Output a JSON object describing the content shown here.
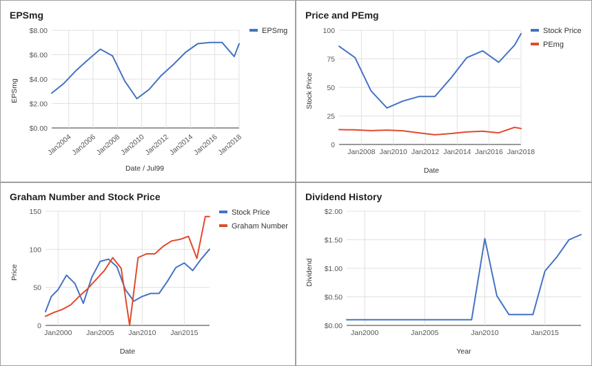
{
  "chart_data": [
    {
      "type": "line",
      "title": "EPSmg",
      "xlabel": "Date / Jul99",
      "ylabel": "EPSmg",
      "x_ticks": [
        "Jan2004",
        "Jan2006",
        "Jan2008",
        "Jan2010",
        "Jan2012",
        "Jan2014",
        "Jan2016",
        "Jan2018"
      ],
      "xlim": [
        2002.6,
        2018.0
      ],
      "y_ticks": [
        "$0.00",
        "$2.00",
        "$4.00",
        "$6.00",
        "$8.00"
      ],
      "ylim": [
        0,
        8
      ],
      "legend_position": "right",
      "grid": true,
      "colors": {
        "EPSmg": "#4472c4"
      },
      "series": [
        {
          "name": "EPSmg",
          "color": "#4472c4",
          "x": [
            2002.6,
            2003.6,
            2004.6,
            2005.6,
            2006.6,
            2007.6,
            2008.6,
            2009.6,
            2010.6,
            2011.6,
            2012.6,
            2013.6,
            2014.6,
            2015.6,
            2016.6,
            2017.6,
            2018.0
          ],
          "y": [
            2.85,
            3.65,
            4.7,
            5.6,
            6.45,
            5.9,
            3.85,
            2.4,
            3.15,
            4.3,
            5.2,
            6.2,
            6.9,
            7.0,
            7.0,
            5.85,
            6.9
          ]
        }
      ]
    },
    {
      "type": "line",
      "title": "Price and PEmg",
      "xlabel": "Date",
      "ylabel": "Stock Price",
      "x_ticks": [
        "Jan2008",
        "Jan2010",
        "Jan2012",
        "Jan2014",
        "Jan2016",
        "Jan2018"
      ],
      "xlim": [
        2006.6,
        2018.0
      ],
      "y_ticks": [
        "0",
        "25",
        "50",
        "75",
        "100"
      ],
      "ylim": [
        0,
        100
      ],
      "legend_position": "right",
      "grid": true,
      "colors": {
        "Stock Price": "#4472c4",
        "PEmg": "#e0492c"
      },
      "series": [
        {
          "name": "Stock Price",
          "color": "#4472c4",
          "x": [
            2006.6,
            2007.6,
            2008.6,
            2009.6,
            2010.6,
            2011.6,
            2012.6,
            2013.6,
            2014.6,
            2015.6,
            2016.6,
            2017.6,
            2018.0
          ],
          "y": [
            86,
            76,
            47,
            32,
            38,
            42,
            42,
            58,
            76,
            82,
            72,
            87,
            97
          ]
        },
        {
          "name": "PEmg",
          "color": "#e0492c",
          "x": [
            2006.6,
            2007.6,
            2008.6,
            2009.6,
            2010.6,
            2011.6,
            2012.6,
            2013.6,
            2014.6,
            2015.6,
            2016.6,
            2017.6,
            2018.0
          ],
          "y": [
            13,
            12.8,
            12.1,
            12.6,
            12,
            10.2,
            8.5,
            9.6,
            11,
            11.6,
            10.2,
            15,
            14
          ]
        }
      ]
    },
    {
      "type": "line",
      "title": "Graham Number and Stock Price",
      "xlabel": "Date",
      "ylabel": "Price",
      "x_ticks": [
        "Jan2000",
        "Jan2005",
        "Jan2010",
        "Jan2015"
      ],
      "xlim": [
        1998.5,
        2018.0
      ],
      "y_ticks": [
        "0",
        "50",
        "100",
        "150"
      ],
      "ylim": [
        0,
        150
      ],
      "legend_position": "right",
      "grid": true,
      "colors": {
        "Stock Price": "#4472c4",
        "Graham Number": "#e0492c"
      },
      "series": [
        {
          "name": "Stock Price",
          "color": "#4472c4",
          "x": [
            1998.5,
            1999.2,
            2000.0,
            2001.0,
            2002.0,
            2003.0,
            2004.0,
            2005.0,
            2006.0,
            2007.0,
            2008.0,
            2009.0,
            2010.0,
            2011.0,
            2012.0,
            2013.0,
            2014.0,
            2015.0,
            2016.0,
            2017.0,
            2018.0
          ],
          "y": [
            18,
            38,
            47,
            66,
            55,
            29,
            63,
            84,
            87,
            77,
            47,
            32,
            38,
            42,
            42,
            58,
            76,
            82,
            72,
            87,
            100
          ]
        },
        {
          "name": "Graham Number",
          "color": "#e0492c",
          "x": [
            1998.5,
            1999.5,
            2000.5,
            2001.5,
            2002.5,
            2003.5,
            2004.5,
            2005.5,
            2006.5,
            2007.5,
            2008.5,
            2009.5,
            2010.5,
            2011.5,
            2012.5,
            2013.5,
            2014.5,
            2015.5,
            2016.5,
            2017.5,
            2018.0
          ],
          "y": [
            12,
            17,
            21,
            27,
            38,
            48,
            60,
            72,
            89,
            75,
            0,
            89,
            94,
            94,
            104,
            111,
            113,
            117,
            88,
            143,
            143
          ]
        }
      ]
    },
    {
      "type": "line",
      "title": "Dividend History",
      "xlabel": "Year",
      "ylabel": "Dividend",
      "x_ticks": [
        "Jan2000",
        "Jan2005",
        "Jan2010",
        "Jan2015"
      ],
      "xlim": [
        1998.5,
        2018.0
      ],
      "y_ticks": [
        "$0.00",
        "$0.50",
        "$1.00",
        "$1.50",
        "$2.00"
      ],
      "ylim": [
        0,
        2
      ],
      "grid": true,
      "colors": {
        "Dividend": "#4472c4"
      },
      "series": [
        {
          "color": "#4472c4",
          "x": [
            1998.5,
            2000.0,
            2002.0,
            2004.0,
            2006.0,
            2008.0,
            2008.9,
            2010.0,
            2011.0,
            2012.0,
            2013.0,
            2014.0,
            2015.0,
            2016.0,
            2017.0,
            2018.0
          ],
          "y": [
            0.1,
            0.1,
            0.1,
            0.1,
            0.1,
            0.1,
            0.1,
            1.52,
            0.52,
            0.19,
            0.19,
            0.19,
            0.95,
            1.2,
            1.5,
            1.59
          ]
        }
      ]
    }
  ]
}
